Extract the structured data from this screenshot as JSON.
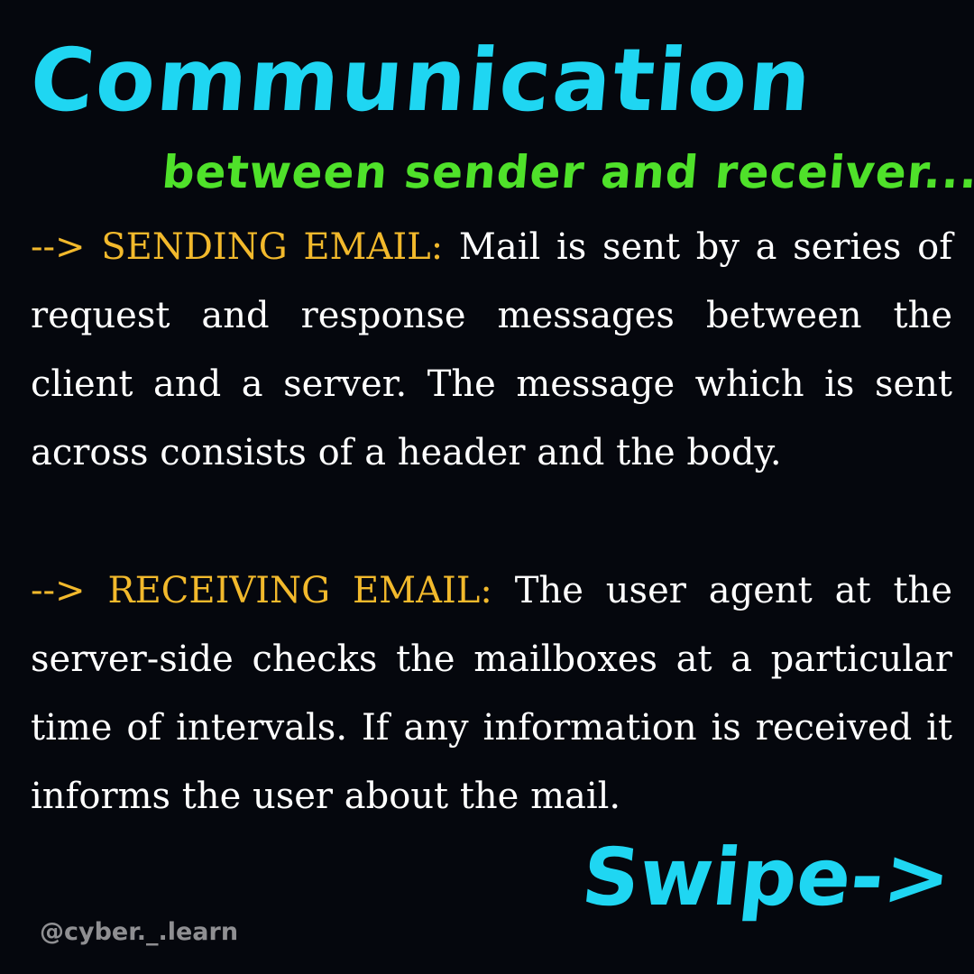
{
  "title": "Communication",
  "subtitle": "between sender and receiver...",
  "sections": [
    {
      "marker": "-->",
      "label": "SENDING EMAIL:",
      "text": "Mail is sent by a series of request and response messages between the client and a server. The message which is sent across consists of a header and the body."
    },
    {
      "marker": "-->",
      "label": "RECEIVING EMAIL:",
      "text": "The user agent at the server-side checks the mailboxes at a particular time of intervals. If any information is received it informs the user about the mail."
    }
  ],
  "swipe_label": "Swipe->",
  "handle": "@cyber._.learn",
  "colors": {
    "background": "#05070d",
    "title": "#1fd6f2",
    "subtitle": "#4fe12a",
    "label": "#f2b92c",
    "body_text": "#ffffff",
    "handle": "#8f8f92"
  }
}
